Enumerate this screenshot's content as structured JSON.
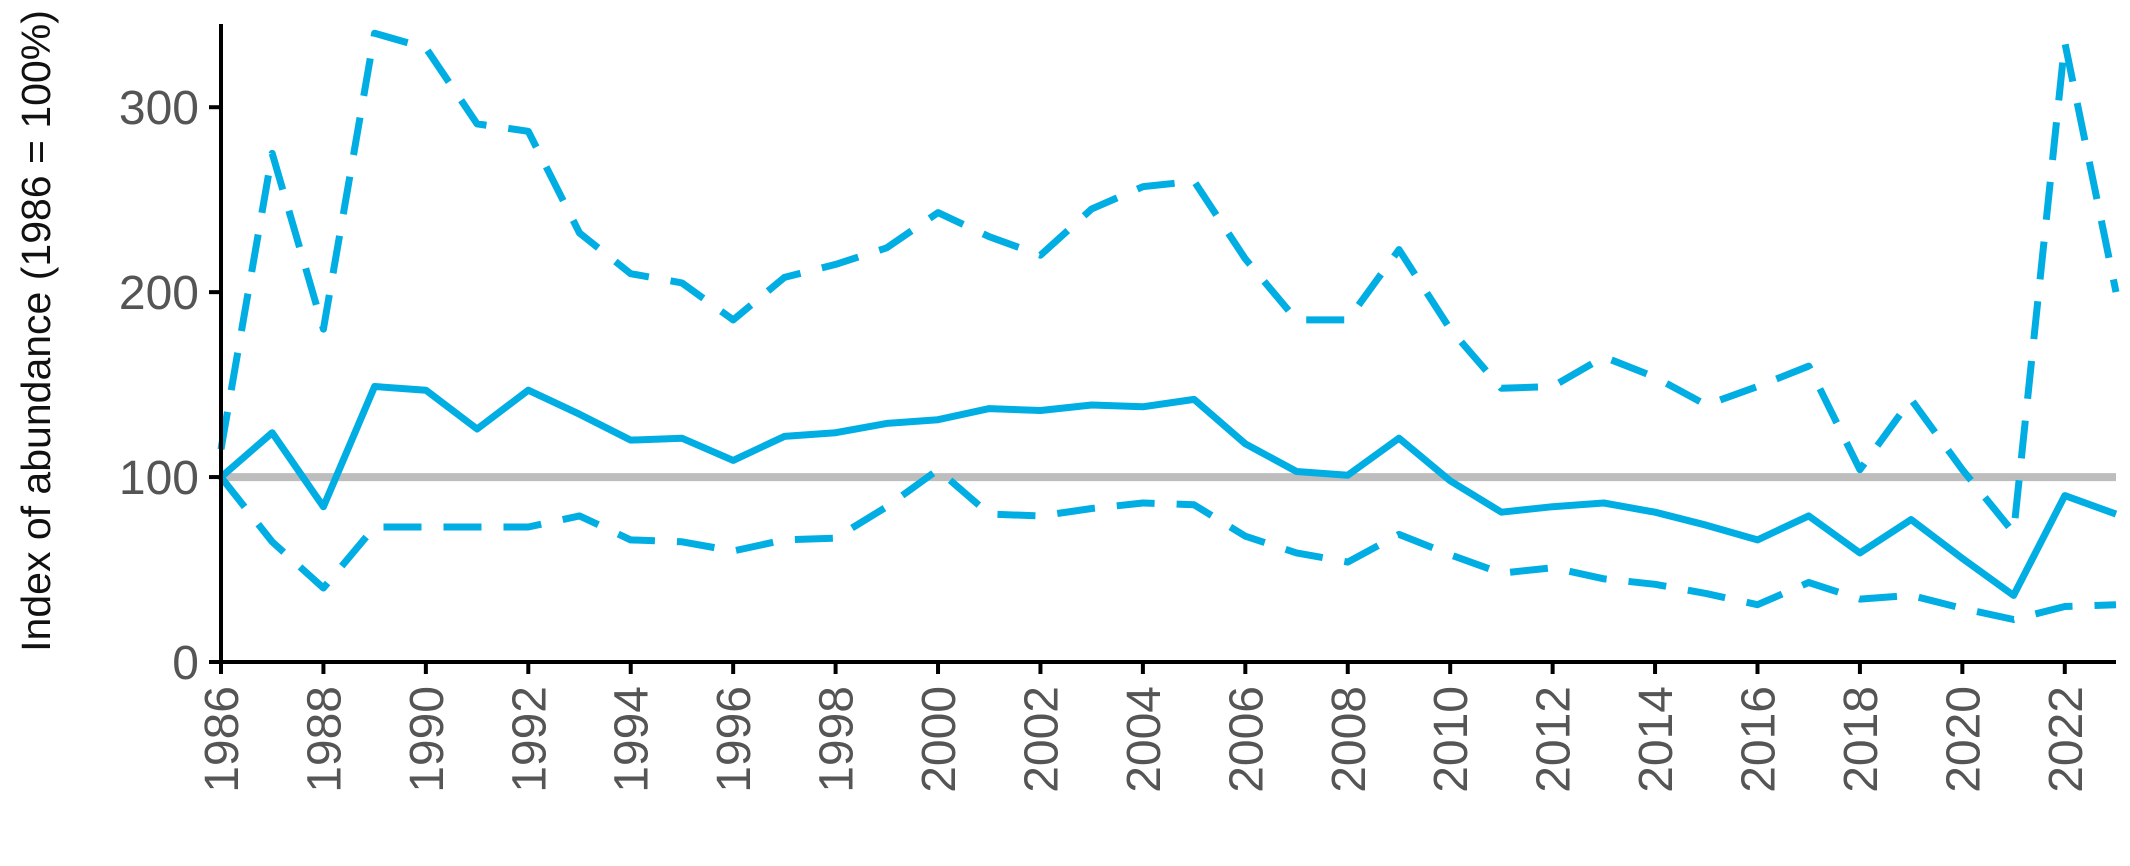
{
  "chart_data": {
    "type": "line",
    "xlabel": "",
    "ylabel": "Index of abundance (1986 = 100%)",
    "ylim": [
      0,
      345
    ],
    "xlim": [
      1986,
      2023
    ],
    "y_ticks": [
      0,
      100,
      200,
      300
    ],
    "x_ticks": [
      1986,
      1988,
      1990,
      1992,
      1994,
      1996,
      1998,
      2000,
      2002,
      2004,
      2006,
      2008,
      2010,
      2012,
      2014,
      2016,
      2018,
      2020,
      2022
    ],
    "reference_line": {
      "y": 100,
      "color": "#bdbdbd"
    },
    "grid": false,
    "legend": "none",
    "colors": {
      "series": "#00aee3",
      "reference": "#bdbdbd",
      "axis": "#000000",
      "tick_text": "#555555"
    },
    "x": [
      1986,
      1987,
      1988,
      1989,
      1990,
      1991,
      1992,
      1993,
      1994,
      1995,
      1996,
      1997,
      1998,
      1999,
      2000,
      2001,
      2002,
      2003,
      2004,
      2005,
      2006,
      2007,
      2008,
      2009,
      2010,
      2011,
      2012,
      2013,
      2014,
      2015,
      2016,
      2017,
      2018,
      2019,
      2020,
      2021,
      2022,
      2023
    ],
    "series": [
      {
        "style": "solid",
        "values": [
          100,
          124,
          84,
          149,
          147,
          126,
          147,
          134,
          120,
          121,
          109,
          122,
          124,
          129,
          131,
          137,
          136,
          139,
          138,
          142,
          118,
          103,
          101,
          121,
          98,
          81,
          84,
          86,
          81,
          74,
          66,
          79,
          59,
          77,
          56,
          36,
          90,
          80
        ]
      },
      {
        "style": "dashed",
        "values": [
          115,
          275,
          180,
          340,
          332,
          291,
          287,
          232,
          210,
          205,
          185,
          208,
          215,
          224,
          243,
          230,
          220,
          245,
          257,
          260,
          218,
          185,
          185,
          223,
          180,
          148,
          149,
          165,
          154,
          139,
          149,
          160,
          104,
          142,
          104,
          70,
          335,
          200
        ]
      },
      {
        "style": "dashed",
        "values": [
          100,
          65,
          40,
          73,
          73,
          73,
          73,
          79,
          66,
          65,
          60,
          66,
          67,
          84,
          104,
          80,
          79,
          83,
          86,
          85,
          68,
          59,
          54,
          69,
          58,
          48,
          51,
          45,
          42,
          37,
          31,
          43,
          34,
          36,
          29,
          23,
          30,
          31
        ]
      }
    ]
  }
}
